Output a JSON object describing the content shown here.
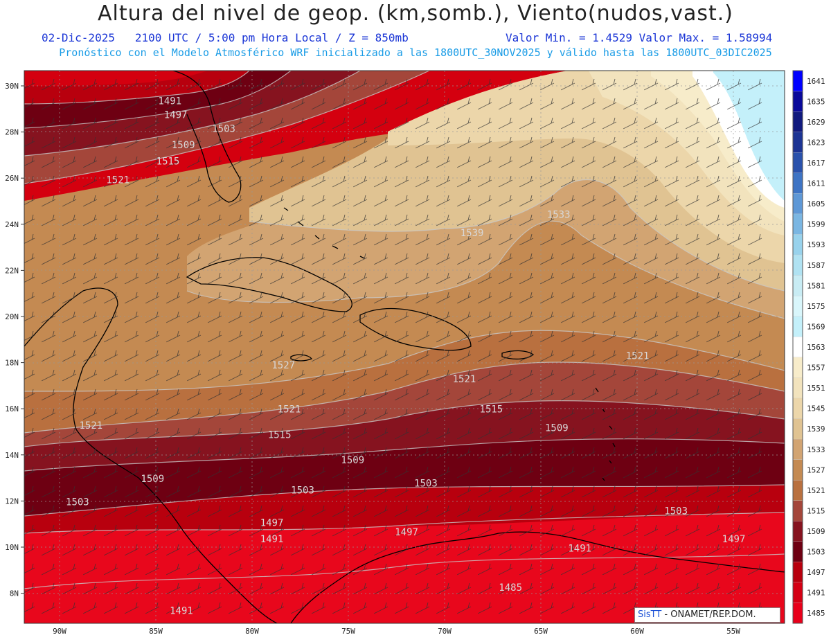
{
  "header": {
    "title": "Altura del nivel de geop. (km,somb.), Viento(nudos,vast.)",
    "date": "02-Dic-2025",
    "time": "2100 UTC / 5:00 pm Hora Local / Z = 850mb",
    "min_max": "Valor Min. = 1.4529  Valor Max. = 1.58994",
    "model_info": "Pronóstico con el Modelo Atmosférico WRF inicializado a las 1800UTC_30NOV2025 y válido hasta las  1800UTC_03DIC2025"
  },
  "map": {
    "lon_labels": [
      "90W",
      "85W",
      "80W",
      "75W",
      "70W",
      "65W",
      "60W",
      "55W"
    ],
    "lat_labels": [
      "30N",
      "28N",
      "26N",
      "24N",
      "22N",
      "20N",
      "18N",
      "16N",
      "14N",
      "12N",
      "10N",
      "8N"
    ],
    "contour_labels": [
      {
        "text": "1491",
        "lon": -84.9,
        "lat": 29.2
      },
      {
        "text": "1497",
        "lon": -84.6,
        "lat": 28.6
      },
      {
        "text": "1503",
        "lon": -82.1,
        "lat": 28.0
      },
      {
        "text": "1509",
        "lon": -84.2,
        "lat": 27.3
      },
      {
        "text": "1515",
        "lon": -85.0,
        "lat": 26.6
      },
      {
        "text": "1521",
        "lon": -87.6,
        "lat": 25.8
      },
      {
        "text": "1533",
        "lon": -64.7,
        "lat": 24.3
      },
      {
        "text": "1539",
        "lon": -69.2,
        "lat": 23.5
      },
      {
        "text": "1527",
        "lon": -79.0,
        "lat": 17.8
      },
      {
        "text": "1521",
        "lon": -69.6,
        "lat": 17.2
      },
      {
        "text": "1521",
        "lon": -60.6,
        "lat": 18.2
      },
      {
        "text": "1521",
        "lon": -78.7,
        "lat": 15.9
      },
      {
        "text": "1521",
        "lon": -89.0,
        "lat": 15.2
      },
      {
        "text": "1515",
        "lon": -79.2,
        "lat": 14.8
      },
      {
        "text": "1515",
        "lon": -68.2,
        "lat": 15.9
      },
      {
        "text": "1509",
        "lon": -64.8,
        "lat": 15.1
      },
      {
        "text": "1509",
        "lon": -75.4,
        "lat": 13.7
      },
      {
        "text": "1509",
        "lon": -85.8,
        "lat": 12.9
      },
      {
        "text": "1503",
        "lon": -78.0,
        "lat": 12.4
      },
      {
        "text": "1503",
        "lon": -89.7,
        "lat": 11.9
      },
      {
        "text": "1503",
        "lon": -71.6,
        "lat": 12.7
      },
      {
        "text": "1503",
        "lon": -58.6,
        "lat": 11.5
      },
      {
        "text": "1497",
        "lon": -79.6,
        "lat": 11.0
      },
      {
        "text": "1497",
        "lon": -72.6,
        "lat": 10.6
      },
      {
        "text": "1497",
        "lon": -55.6,
        "lat": 10.3
      },
      {
        "text": "1491",
        "lon": -79.6,
        "lat": 10.3
      },
      {
        "text": "1491",
        "lon": -63.6,
        "lat": 9.9
      },
      {
        "text": "1485",
        "lon": -67.2,
        "lat": 8.2
      },
      {
        "text": "1491",
        "lon": -84.3,
        "lat": 7.2
      }
    ]
  },
  "colorbar": {
    "levels": [
      "1485",
      "1491",
      "1497",
      "1503",
      "1509",
      "1515",
      "1521",
      "1527",
      "1533",
      "1539",
      "1545",
      "1551",
      "1557",
      "1563",
      "1569",
      "1575",
      "1581",
      "1587",
      "1593",
      "1599",
      "1605",
      "1611",
      "1617",
      "1623",
      "1629",
      "1635",
      "1641"
    ],
    "colors": [
      "#e8001a",
      "#d40014",
      "#b8000e",
      "#6e0012",
      "#86131f",
      "#a4463a",
      "#b9703f",
      "#c48a52",
      "#d2a472",
      "#e0c392",
      "#ecd6aa",
      "#f2e3bd",
      "#f7ecca",
      "#ffffff",
      "#c4f0fa",
      "#d9f6fb",
      "#c8ecf4",
      "#b0e2f2",
      "#98d2ec",
      "#7ab6e2",
      "#5e98d6",
      "#3e74c4",
      "#2a52ac",
      "#1c3494",
      "#111a7e",
      "#0a0a9a",
      "#0000ff"
    ]
  },
  "credit": {
    "brand": "SisTT",
    "text": " - ONAMET/REP.DOM."
  }
}
